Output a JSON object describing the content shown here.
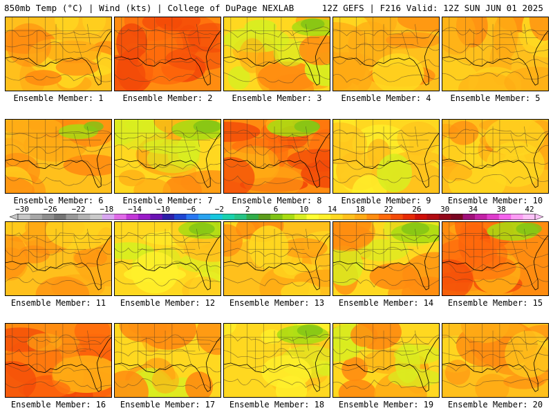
{
  "header": {
    "left": "850mb Temp (°C) | Wind (kts) | College of DuPage NEXLAB",
    "right": "12Z GEFS | F216 Valid: 12Z SUN JUN 01 2025"
  },
  "panels": [
    {
      "label": "Ensemble Member: 1",
      "style": "warm",
      "green": 0.05
    },
    {
      "label": "Ensemble Member: 2",
      "style": "hot",
      "green": 0.05
    },
    {
      "label": "Ensemble Member: 3",
      "style": "mixed",
      "green": 0.25
    },
    {
      "label": "Ensemble Member: 4",
      "style": "warm",
      "green": 0.05
    },
    {
      "label": "Ensemble Member: 5",
      "style": "warm",
      "green": 0.05
    },
    {
      "label": "Ensemble Member: 6",
      "style": "warm",
      "green": 0.15
    },
    {
      "label": "Ensemble Member: 7",
      "style": "mixed",
      "green": 0.35
    },
    {
      "label": "Ensemble Member: 8",
      "style": "hot",
      "green": 0.3
    },
    {
      "label": "Ensemble Member: 9",
      "style": "cool",
      "green": 0.05
    },
    {
      "label": "Ensemble Member: 10",
      "style": "warm",
      "green": 0.1
    },
    {
      "label": "Ensemble Member: 11",
      "style": "warm",
      "green": 0.05
    },
    {
      "label": "Ensemble Member: 12",
      "style": "cool",
      "green": 0.3
    },
    {
      "label": "Ensemble Member: 13",
      "style": "warm",
      "green": 0.05
    },
    {
      "label": "Ensemble Member: 14",
      "style": "mixed",
      "green": 0.35
    },
    {
      "label": "Ensemble Member: 15",
      "style": "hot",
      "green": 0.3
    },
    {
      "label": "Ensemble Member: 16",
      "style": "hot",
      "green": 0.1
    },
    {
      "label": "Ensemble Member: 17",
      "style": "mixed",
      "green": 0.1
    },
    {
      "label": "Ensemble Member: 18",
      "style": "cool",
      "green": 0.3
    },
    {
      "label": "Ensemble Member: 19",
      "style": "mixed",
      "green": 0.1
    },
    {
      "label": "Ensemble Member: 20",
      "style": "warm",
      "green": 0.05
    }
  ],
  "colorbar": {
    "ticks": [
      "−30",
      "−26",
      "−22",
      "−18",
      "−14",
      "−10",
      "−6",
      "−2",
      "2",
      "6",
      "10",
      "14",
      "18",
      "22",
      "26",
      "30",
      "34",
      "38",
      "42"
    ],
    "colors": [
      "#c7c7c7",
      "#a7a7a7",
      "#8e8e8e",
      "#757575",
      "#999999",
      "#b3b3b3",
      "#c9c9c9",
      "#d8a6f0",
      "#e06ae8",
      "#c238d8",
      "#9a1bc8",
      "#6a12b4",
      "#2e1fa8",
      "#1f46d2",
      "#2a78f2",
      "#2aa3f0",
      "#16c6de",
      "#19d2ad",
      "#26c486",
      "#31ad4a",
      "#5c9d1c",
      "#7fc315",
      "#a8dc12",
      "#d9ee20",
      "#ffff33",
      "#fff02a",
      "#ffd820",
      "#ffc01c",
      "#ffaa14",
      "#ff8c10",
      "#ff6a0c",
      "#f34a08",
      "#e62a06",
      "#cf0f08",
      "#b20c12",
      "#93081a",
      "#7a0622",
      "#a0107a",
      "#c221a6",
      "#de3ccc",
      "#f464ec",
      "#fb9cf4",
      "#fcc2f8"
    ]
  }
}
